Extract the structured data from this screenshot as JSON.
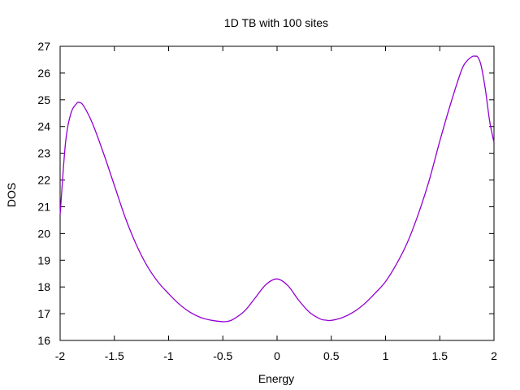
{
  "chart_data": {
    "type": "line",
    "title": "1D TB with 100 sites",
    "xlabel": "Energy",
    "ylabel": "DOS",
    "xlim": [
      -2,
      2
    ],
    "ylim": [
      16,
      27
    ],
    "x_ticks": [
      -2,
      -1.5,
      -1,
      -0.5,
      0,
      0.5,
      1,
      1.5,
      2
    ],
    "x_tick_labels": [
      "-2",
      "-1.5",
      "-1",
      "-0.5",
      "0",
      "0.5",
      "1",
      "1.5",
      "2"
    ],
    "y_ticks": [
      16,
      17,
      18,
      19,
      20,
      21,
      22,
      23,
      24,
      25,
      26,
      27
    ],
    "y_tick_labels": [
      "16",
      "17",
      "18",
      "19",
      "20",
      "21",
      "22",
      "23",
      "24",
      "25",
      "26",
      "27"
    ],
    "grid": false,
    "legend": "none",
    "series": [
      {
        "color": "#9400d3",
        "x": [
          -2.0,
          -1.95,
          -1.9,
          -1.85,
          -1.82,
          -1.78,
          -1.7,
          -1.6,
          -1.5,
          -1.4,
          -1.3,
          -1.2,
          -1.1,
          -1.0,
          -0.9,
          -0.8,
          -0.7,
          -0.6,
          -0.5,
          -0.45,
          -0.4,
          -0.3,
          -0.2,
          -0.1,
          0.0,
          0.1,
          0.2,
          0.3,
          0.4,
          0.45,
          0.5,
          0.6,
          0.7,
          0.8,
          0.9,
          1.0,
          1.1,
          1.2,
          1.3,
          1.4,
          1.5,
          1.6,
          1.7,
          1.75,
          1.8,
          1.83,
          1.85,
          1.88,
          1.92,
          1.96,
          2.0
        ],
        "y": [
          20.7,
          23.4,
          24.5,
          24.85,
          24.9,
          24.75,
          24.1,
          23.0,
          21.8,
          20.6,
          19.6,
          18.8,
          18.2,
          17.75,
          17.35,
          17.05,
          16.85,
          16.75,
          16.7,
          16.72,
          16.8,
          17.1,
          17.6,
          18.1,
          18.3,
          18.05,
          17.5,
          17.05,
          16.8,
          16.76,
          16.75,
          16.85,
          17.05,
          17.35,
          17.75,
          18.2,
          18.85,
          19.65,
          20.7,
          21.95,
          23.45,
          24.85,
          26.1,
          26.45,
          26.62,
          26.63,
          26.6,
          26.3,
          25.4,
          24.2,
          23.4
        ]
      }
    ]
  }
}
